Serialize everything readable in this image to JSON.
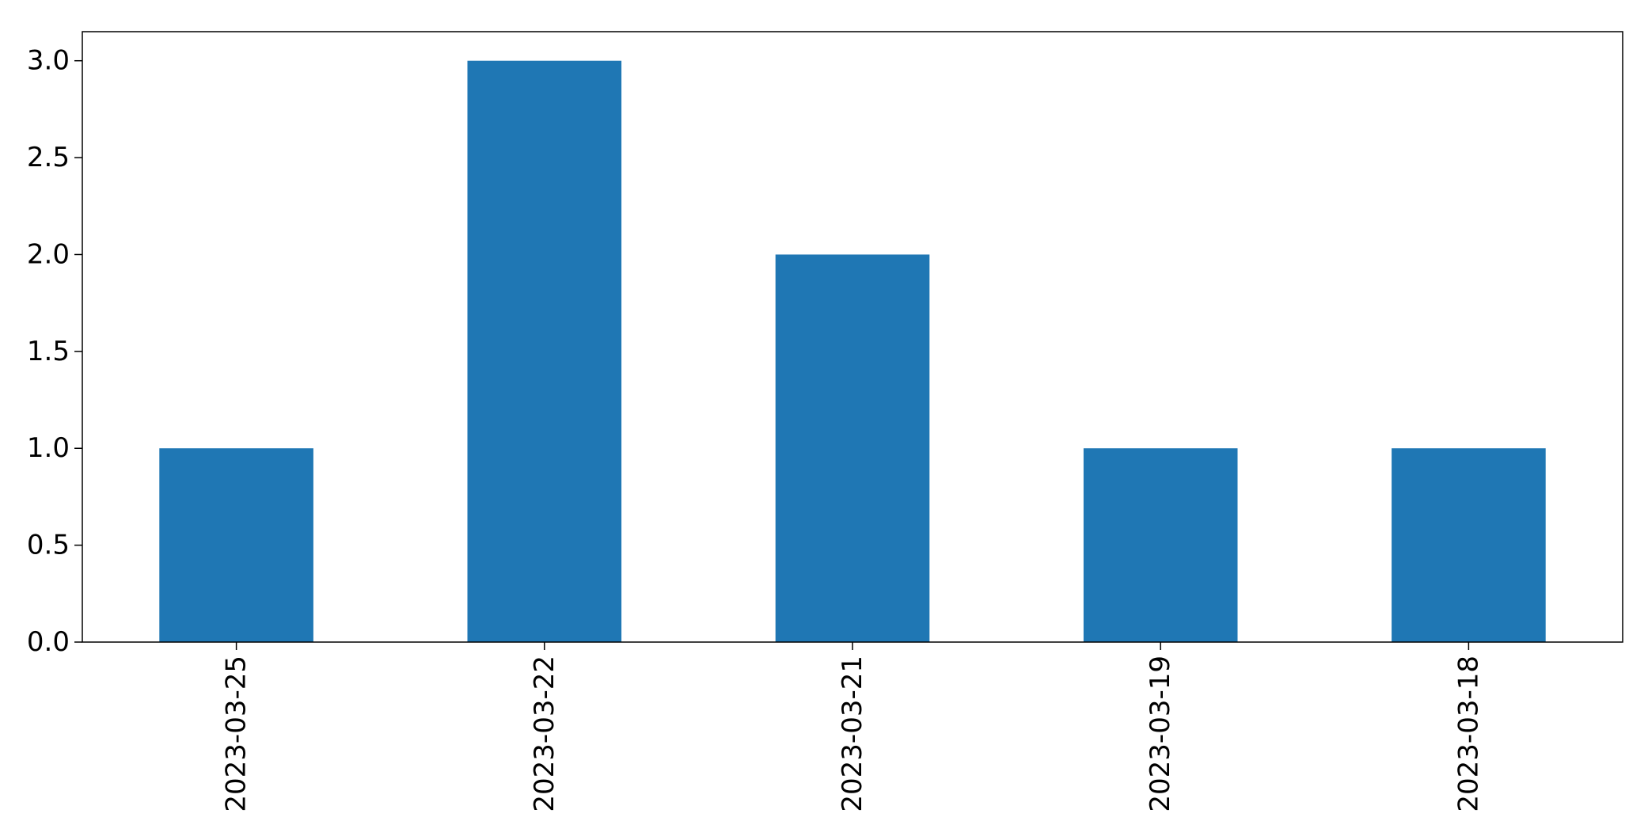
{
  "chart_data": {
    "type": "bar",
    "categories": [
      "2023-03-25",
      "2023-03-22",
      "2023-03-21",
      "2023-03-19",
      "2023-03-18"
    ],
    "values": [
      1,
      3,
      2,
      1,
      1
    ],
    "title": "",
    "xlabel": "",
    "ylabel": "",
    "ylim": [
      0,
      3.15
    ],
    "yticks": [
      "0.0",
      "0.5",
      "1.0",
      "1.5",
      "2.0",
      "2.5",
      "3.0"
    ],
    "grid": false,
    "legend": false,
    "bar_color": "#1f77b4",
    "x_tick_rotation": "vertical"
  }
}
